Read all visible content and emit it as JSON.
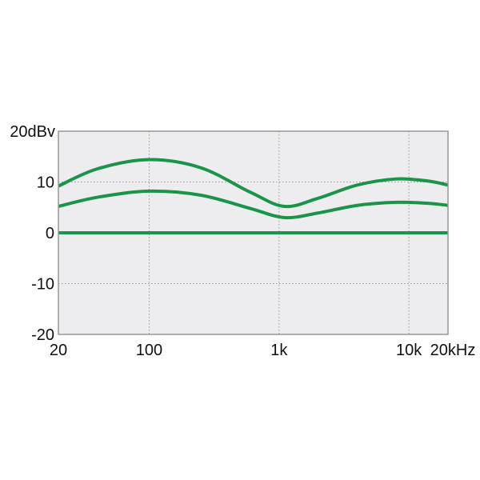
{
  "chart_data": {
    "type": "line",
    "x_scale": "log",
    "xlim": [
      20,
      20000
    ],
    "ylim": [
      -20,
      20
    ],
    "grid": true,
    "x_ticks": [
      {
        "value": 20,
        "label": "20"
      },
      {
        "value": 100,
        "label": "100"
      },
      {
        "value": 1000,
        "label": "1k"
      },
      {
        "value": 10000,
        "label": "10k"
      },
      {
        "value": 20000,
        "label": "20kHz"
      }
    ],
    "y_ticks": [
      {
        "value": 20,
        "label": "20dBv"
      },
      {
        "value": 10,
        "label": "10"
      },
      {
        "value": 0,
        "label": "0"
      },
      {
        "value": -10,
        "label": "-10"
      },
      {
        "value": -20,
        "label": "-20"
      }
    ],
    "colors": {
      "line": "#1a9448",
      "plot_background": "#ededf0",
      "grid": "#999999",
      "border": "#999999"
    },
    "series": [
      {
        "x": [
          20,
          40,
          100,
          250,
          600,
          1100,
          2000,
          4000,
          8000,
          14000,
          20000
        ],
        "y": [
          9.2,
          12.6,
          14.4,
          12.8,
          8.0,
          5.2,
          6.8,
          9.4,
          10.6,
          10.2,
          9.4
        ]
      },
      {
        "x": [
          20,
          40,
          100,
          250,
          600,
          1100,
          2000,
          4000,
          8000,
          14000,
          20000
        ],
        "y": [
          5.2,
          7.0,
          8.2,
          7.4,
          4.8,
          3.0,
          3.9,
          5.4,
          6.0,
          5.8,
          5.4
        ]
      },
      {
        "x": [
          20,
          20000
        ],
        "y": [
          0,
          0
        ]
      }
    ]
  }
}
